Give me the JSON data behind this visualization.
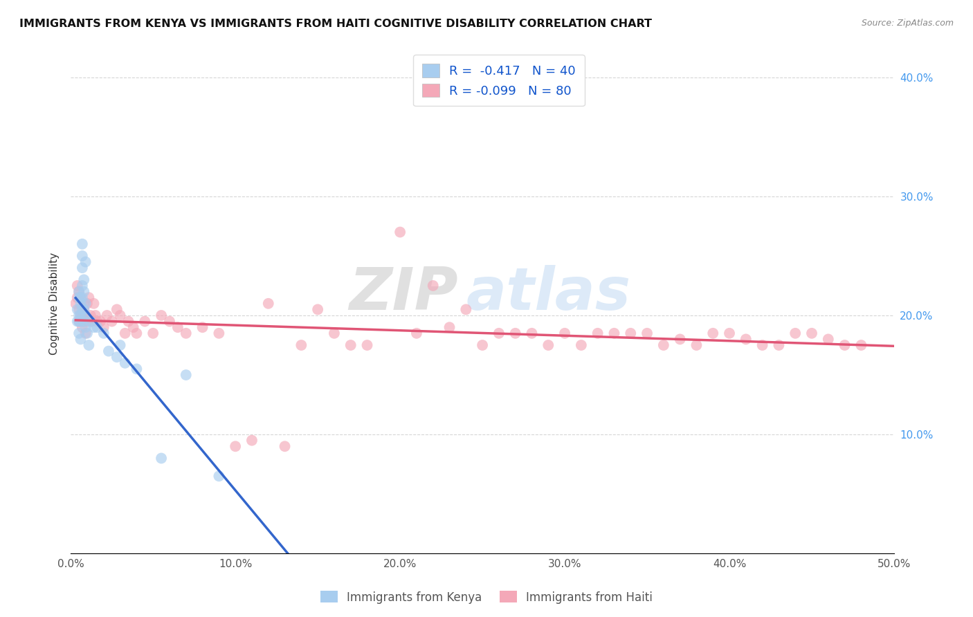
{
  "title": "IMMIGRANTS FROM KENYA VS IMMIGRANTS FROM HAITI COGNITIVE DISABILITY CORRELATION CHART",
  "source": "Source: ZipAtlas.com",
  "ylabel": "Cognitive Disability",
  "xlim": [
    0.0,
    0.5
  ],
  "ylim": [
    0.0,
    0.42
  ],
  "kenya_R": "-0.417",
  "kenya_N": "40",
  "haiti_R": "-0.099",
  "haiti_N": "80",
  "kenya_color": "#A8CDEF",
  "haiti_color": "#F4A8B8",
  "kenya_line_color": "#3366CC",
  "haiti_line_color": "#E05575",
  "dashed_line_color": "#A8CDEF",
  "legend_label_kenya": "Immigrants from Kenya",
  "legend_label_haiti": "Immigrants from Haiti",
  "kenya_x": [
    0.004,
    0.004,
    0.005,
    0.005,
    0.005,
    0.005,
    0.005,
    0.006,
    0.006,
    0.006,
    0.006,
    0.006,
    0.007,
    0.007,
    0.007,
    0.007,
    0.007,
    0.007,
    0.008,
    0.008,
    0.008,
    0.008,
    0.009,
    0.009,
    0.009,
    0.009,
    0.01,
    0.011,
    0.012,
    0.014,
    0.016,
    0.02,
    0.023,
    0.028,
    0.03,
    0.033,
    0.04,
    0.055,
    0.07,
    0.09
  ],
  "kenya_y": [
    0.195,
    0.205,
    0.185,
    0.2,
    0.215,
    0.195,
    0.22,
    0.18,
    0.195,
    0.21,
    0.2,
    0.215,
    0.24,
    0.25,
    0.26,
    0.225,
    0.215,
    0.205,
    0.22,
    0.23,
    0.195,
    0.205,
    0.19,
    0.21,
    0.245,
    0.2,
    0.185,
    0.175,
    0.195,
    0.19,
    0.19,
    0.185,
    0.17,
    0.165,
    0.175,
    0.16,
    0.155,
    0.08,
    0.15,
    0.065
  ],
  "haiti_x": [
    0.003,
    0.004,
    0.004,
    0.005,
    0.005,
    0.005,
    0.006,
    0.006,
    0.007,
    0.007,
    0.007,
    0.008,
    0.008,
    0.008,
    0.009,
    0.009,
    0.01,
    0.01,
    0.011,
    0.012,
    0.013,
    0.014,
    0.015,
    0.016,
    0.018,
    0.02,
    0.022,
    0.025,
    0.028,
    0.03,
    0.033,
    0.035,
    0.038,
    0.04,
    0.045,
    0.05,
    0.055,
    0.06,
    0.065,
    0.07,
    0.08,
    0.09,
    0.1,
    0.11,
    0.12,
    0.13,
    0.14,
    0.15,
    0.16,
    0.17,
    0.18,
    0.2,
    0.21,
    0.22,
    0.23,
    0.24,
    0.25,
    0.26,
    0.27,
    0.28,
    0.29,
    0.3,
    0.31,
    0.32,
    0.33,
    0.34,
    0.35,
    0.36,
    0.37,
    0.38,
    0.39,
    0.4,
    0.41,
    0.42,
    0.43,
    0.44,
    0.45,
    0.46,
    0.47,
    0.48
  ],
  "haiti_y": [
    0.21,
    0.225,
    0.215,
    0.195,
    0.205,
    0.22,
    0.2,
    0.215,
    0.195,
    0.19,
    0.2,
    0.205,
    0.195,
    0.21,
    0.185,
    0.2,
    0.195,
    0.21,
    0.215,
    0.2,
    0.195,
    0.21,
    0.2,
    0.195,
    0.195,
    0.19,
    0.2,
    0.195,
    0.205,
    0.2,
    0.185,
    0.195,
    0.19,
    0.185,
    0.195,
    0.185,
    0.2,
    0.195,
    0.19,
    0.185,
    0.19,
    0.185,
    0.09,
    0.095,
    0.21,
    0.09,
    0.175,
    0.205,
    0.185,
    0.175,
    0.175,
    0.27,
    0.185,
    0.225,
    0.19,
    0.205,
    0.175,
    0.185,
    0.185,
    0.185,
    0.175,
    0.185,
    0.175,
    0.185,
    0.185,
    0.185,
    0.185,
    0.175,
    0.18,
    0.175,
    0.185,
    0.185,
    0.18,
    0.175,
    0.175,
    0.185,
    0.185,
    0.18,
    0.175,
    0.175
  ],
  "watermark_zip": "ZIP",
  "watermark_atlas": "atlas",
  "background_color": "#FFFFFF",
  "grid_color": "#CCCCCC",
  "kenya_line_start": 0.003,
  "kenya_line_solid_end": 0.25,
  "kenya_line_dash_end": 0.5,
  "haiti_line_start": 0.003,
  "haiti_line_end": 0.5
}
